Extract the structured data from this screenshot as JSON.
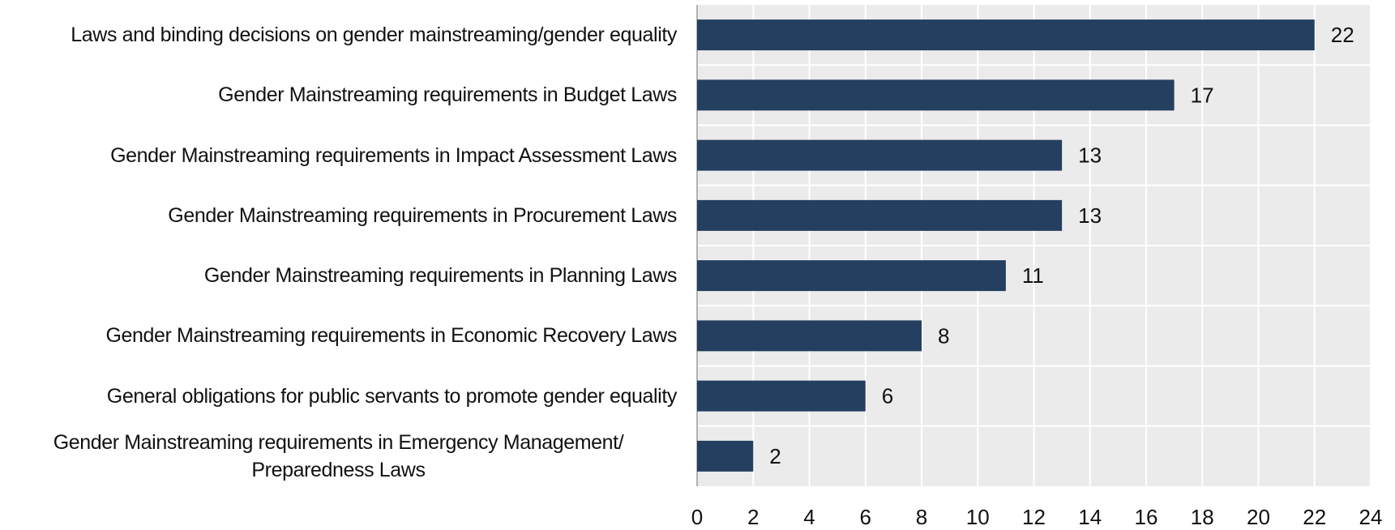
{
  "chart_data": {
    "type": "bar",
    "orientation": "horizontal",
    "categories": [
      "Laws and binding decisions on gender mainstreaming/gender equality",
      "Gender Mainstreaming requirements in Budget Laws",
      "Gender Mainstreaming requirements in Impact Assessment Laws",
      "Gender Mainstreaming requirements in Procurement Laws",
      "Gender Mainstreaming requirements in Planning Laws",
      "Gender Mainstreaming requirements in Economic Recovery Laws",
      "General obligations for public servants to promote gender equality",
      "Gender Mainstreaming requirements in Emergency Management/ Preparedness Laws"
    ],
    "values": [
      22,
      17,
      13,
      13,
      11,
      8,
      6,
      2
    ],
    "color": "#243f60",
    "xlim": [
      0,
      24
    ],
    "xticks": [
      0,
      2,
      4,
      6,
      8,
      10,
      12,
      14,
      16,
      18,
      20,
      22,
      24
    ],
    "grid": true
  }
}
